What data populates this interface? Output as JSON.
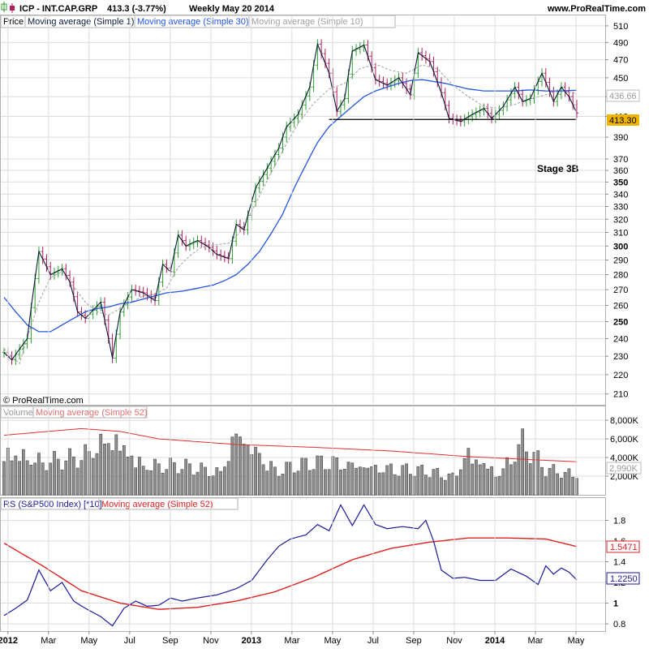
{
  "header": {
    "symbol": "ICP - INT.CAP.GRP",
    "quote": "413.3 (-3.77%)",
    "period": "Weekly  May 20 2014",
    "site": "www.ProRealTime.com"
  },
  "copyright": "© ProRealTime.com",
  "colors": {
    "background": "#ffffff",
    "grid": "#dcdcdc",
    "up_bar": "#2e9e2e",
    "down_bar": "#b0205a",
    "price_line": "#0a1a3a",
    "ma10": "#a0a0a0",
    "ma30": "#2255dd",
    "volume_bar": "#909090",
    "ma52": "#e03030",
    "rs_line": "#1a1a9a",
    "last_price_tag": "#f0b400"
  },
  "chart_data": [
    {
      "type": "line",
      "panel": "price",
      "legend": [
        "Price",
        "Moving average (Simple 1)",
        "Moving average (Simple 30)",
        "Moving average (Simple 10)"
      ],
      "x_axis": {
        "labels": [
          "2012",
          "Mar",
          "May",
          "Jul",
          "Sep",
          "Nov",
          "2013",
          "Mar",
          "May",
          "Jul",
          "Sep",
          "Nov",
          "2014",
          "Mar",
          "May"
        ],
        "bold": [
          "2012",
          "2013",
          "2014"
        ]
      },
      "y_axis": {
        "scale": "log",
        "ylim": [
          205,
          522
        ],
        "ticks": [
          210,
          220,
          230,
          240,
          250,
          260,
          270,
          280,
          290,
          300,
          310,
          320,
          330,
          340,
          350,
          360,
          370,
          390,
          410,
          430,
          450,
          470,
          490,
          510
        ],
        "bold_ticks": [
          250,
          300,
          350
        ]
      },
      "series": [
        {
          "name": "Moving average (Simple 1)",
          "anchors": [
            [
              0,
              232
            ],
            [
              2,
              228
            ],
            [
              6,
              240
            ],
            [
              9,
              296
            ],
            [
              12,
              280
            ],
            [
              15,
              284
            ],
            [
              17,
              275
            ],
            [
              19,
              256
            ],
            [
              21,
              252
            ],
            [
              25,
              262
            ],
            [
              28,
              229
            ],
            [
              30,
              256
            ],
            [
              33,
              270
            ],
            [
              36,
              268
            ],
            [
              39,
              263
            ],
            [
              41,
              287
            ],
            [
              43,
              282
            ],
            [
              45,
              308
            ],
            [
              47,
              300
            ],
            [
              50,
              304
            ],
            [
              53,
              299
            ],
            [
              55,
              294
            ],
            [
              58,
              291
            ],
            [
              60,
              316
            ],
            [
              62,
              312
            ],
            [
              65,
              345
            ],
            [
              68,
              362
            ],
            [
              71,
              380
            ],
            [
              73,
              400
            ],
            [
              76,
              412
            ],
            [
              79,
              440
            ],
            [
              81,
              488
            ],
            [
              84,
              455
            ],
            [
              86,
              415
            ],
            [
              88,
              428
            ],
            [
              90,
              480
            ],
            [
              93,
              487
            ],
            [
              96,
              448
            ],
            [
              99,
              442
            ],
            [
              102,
              450
            ],
            [
              105,
              432
            ],
            [
              107,
              478
            ],
            [
              110,
              468
            ],
            [
              113,
              434
            ],
            [
              115,
              408
            ],
            [
              118,
              405
            ],
            [
              121,
              412
            ],
            [
              124,
              418
            ],
            [
              126,
              408
            ],
            [
              129,
              420
            ],
            [
              132,
              440
            ],
            [
              134,
              425
            ],
            [
              136,
              428
            ],
            [
              139,
              455
            ],
            [
              142,
              425
            ],
            [
              144,
              440
            ],
            [
              146,
              430
            ],
            [
              148,
              413.3
            ]
          ]
        },
        {
          "name": "Moving average (Simple 10)",
          "anchors": [
            [
              0,
              234
            ],
            [
              4,
              226
            ],
            [
              9,
              262
            ],
            [
              12,
              278
            ],
            [
              15,
              282
            ],
            [
              18,
              272
            ],
            [
              21,
              262
            ],
            [
              24,
              256
            ],
            [
              27,
              254
            ],
            [
              30,
              258
            ],
            [
              33,
              262
            ],
            [
              36,
              266
            ],
            [
              39,
              267
            ],
            [
              42,
              271
            ],
            [
              45,
              285
            ],
            [
              48,
              293
            ],
            [
              51,
              299
            ],
            [
              55,
              301
            ],
            [
              58,
              302
            ],
            [
              61,
              310
            ],
            [
              64,
              326
            ],
            [
              67,
              345
            ],
            [
              70,
              364
            ],
            [
              73,
              384
            ],
            [
              76,
              403
            ],
            [
              80,
              423
            ],
            [
              84,
              438
            ],
            [
              88,
              444
            ],
            [
              92,
              460
            ],
            [
              96,
              465
            ],
            [
              100,
              458
            ],
            [
              104,
              455
            ],
            [
              108,
              464
            ],
            [
              112,
              460
            ],
            [
              116,
              442
            ],
            [
              120,
              430
            ],
            [
              124,
              420
            ],
            [
              128,
              418
            ],
            [
              132,
              422
            ],
            [
              136,
              428
            ],
            [
              140,
              432
            ],
            [
              144,
              436
            ],
            [
              148,
              433
            ]
          ]
        },
        {
          "name": "Moving average (Simple 30)",
          "anchors": [
            [
              0,
              265
            ],
            [
              3,
              256
            ],
            [
              6,
              248
            ],
            [
              9,
              244
            ],
            [
              12,
              244
            ],
            [
              15,
              248
            ],
            [
              18,
              252
            ],
            [
              21,
              256
            ],
            [
              24,
              258
            ],
            [
              27,
              259
            ],
            [
              30,
              261
            ],
            [
              33,
              262
            ],
            [
              36,
              264
            ],
            [
              39,
              266
            ],
            [
              42,
              268
            ],
            [
              46,
              269
            ],
            [
              50,
              271
            ],
            [
              54,
              273
            ],
            [
              57,
              276
            ],
            [
              60,
              280
            ],
            [
              63,
              287
            ],
            [
              66,
              296
            ],
            [
              69,
              309
            ],
            [
              72,
              324
            ],
            [
              75,
              345
            ],
            [
              78,
              365
            ],
            [
              81,
              385
            ],
            [
              84,
              400
            ],
            [
              87,
              410
            ],
            [
              90,
              420
            ],
            [
              93,
              430
            ],
            [
              96,
              436
            ],
            [
              99,
              440
            ],
            [
              102,
              444
            ],
            [
              105,
              447
            ],
            [
              108,
              448
            ],
            [
              111,
              446
            ],
            [
              114,
              444
            ],
            [
              117,
              441
            ],
            [
              120,
              438
            ],
            [
              124,
              436
            ],
            [
              128,
              436
            ],
            [
              132,
              436
            ],
            [
              136,
              437
            ],
            [
              140,
              436
            ],
            [
              144,
              436
            ],
            [
              148,
              436.66
            ]
          ]
        }
      ],
      "last_values": [
        "436.66",
        "413.30"
      ],
      "support_level": 407,
      "annotation": "Stage 3B"
    },
    {
      "type": "bar",
      "panel": "volume",
      "legend": [
        "Volume",
        "Moving average (Simple 52)"
      ],
      "y_axis": {
        "ticks": [
          "2,000K",
          "4,000K",
          "6,000K",
          "8,000K"
        ],
        "tick_values": [
          2000,
          4000,
          6000,
          8000
        ],
        "ylim": [
          0,
          9400
        ]
      },
      "volume_anchors": [
        [
          0,
          6500
        ],
        [
          10,
          4500
        ],
        [
          20,
          5200
        ],
        [
          28,
          8500
        ],
        [
          36,
          4200
        ],
        [
          46,
          4000
        ],
        [
          56,
          3200
        ],
        [
          60,
          9200
        ],
        [
          70,
          3500
        ],
        [
          84,
          4800
        ],
        [
          96,
          4000
        ],
        [
          110,
          3200
        ],
        [
          116,
          2600
        ],
        [
          120,
          6000
        ],
        [
          128,
          3000
        ],
        [
          134,
          7400
        ],
        [
          140,
          3500
        ],
        [
          148,
          2800
        ]
      ],
      "ma52_anchors": [
        [
          0,
          6400
        ],
        [
          20,
          7100
        ],
        [
          30,
          6800
        ],
        [
          40,
          6000
        ],
        [
          60,
          5400
        ],
        [
          80,
          5100
        ],
        [
          100,
          4700
        ],
        [
          120,
          4100
        ],
        [
          140,
          3700
        ],
        [
          148,
          3550
        ]
      ],
      "last_values": [
        "2,990K"
      ]
    },
    {
      "type": "line",
      "panel": "relative_strength",
      "legend": [
        "RS (S&P500 Index) [*10]",
        "Moving average (Simple 52)"
      ],
      "y_axis": {
        "ticks": [
          0.8,
          1,
          1.2,
          1.4,
          1.6,
          1.8
        ],
        "bold_ticks": [
          1
        ],
        "ylim": [
          0.73,
          2.0
        ]
      },
      "series": [
        {
          "name": "RS (S&P500 Index) [*10]",
          "anchors": [
            [
              0,
              0.88
            ],
            [
              3,
              0.95
            ],
            [
              6,
              1.03
            ],
            [
              9,
              1.32
            ],
            [
              12,
              1.12
            ],
            [
              15,
              1.2
            ],
            [
              18,
              1.02
            ],
            [
              21,
              0.95
            ],
            [
              25,
              0.87
            ],
            [
              28,
              0.78
            ],
            [
              31,
              0.95
            ],
            [
              34,
              1.02
            ],
            [
              37,
              0.97
            ],
            [
              40,
              0.98
            ],
            [
              43,
              1.05
            ],
            [
              46,
              1.02
            ],
            [
              50,
              1.05
            ],
            [
              55,
              1.08
            ],
            [
              60,
              1.14
            ],
            [
              64,
              1.22
            ],
            [
              68,
              1.42
            ],
            [
              71,
              1.55
            ],
            [
              74,
              1.62
            ],
            [
              78,
              1.66
            ],
            [
              81,
              1.76
            ],
            [
              84,
              1.7
            ],
            [
              87,
              1.95
            ],
            [
              90,
              1.75
            ],
            [
              93,
              1.95
            ],
            [
              96,
              1.76
            ],
            [
              99,
              1.72
            ],
            [
              103,
              1.74
            ],
            [
              107,
              1.72
            ],
            [
              109,
              1.8
            ],
            [
              111,
              1.6
            ],
            [
              113,
              1.32
            ],
            [
              116,
              1.24
            ],
            [
              119,
              1.25
            ],
            [
              123,
              1.22
            ],
            [
              127,
              1.22
            ],
            [
              131,
              1.33
            ],
            [
              135,
              1.26
            ],
            [
              138,
              1.18
            ],
            [
              140,
              1.36
            ],
            [
              142,
              1.28
            ],
            [
              144,
              1.34
            ],
            [
              146,
              1.3
            ],
            [
              148,
              1.225
            ]
          ]
        },
        {
          "name": "Moving average (Simple 52)",
          "anchors": [
            [
              0,
              1.58
            ],
            [
              10,
              1.36
            ],
            [
              20,
              1.12
            ],
            [
              30,
              1.0
            ],
            [
              40,
              0.94
            ],
            [
              50,
              0.96
            ],
            [
              60,
              1.02
            ],
            [
              70,
              1.11
            ],
            [
              80,
              1.25
            ],
            [
              90,
              1.42
            ],
            [
              100,
              1.53
            ],
            [
              110,
              1.59
            ],
            [
              120,
              1.63
            ],
            [
              130,
              1.63
            ],
            [
              140,
              1.62
            ],
            [
              148,
              1.5471
            ]
          ]
        }
      ],
      "last_values": [
        "1.5471",
        "1.2250"
      ]
    }
  ]
}
